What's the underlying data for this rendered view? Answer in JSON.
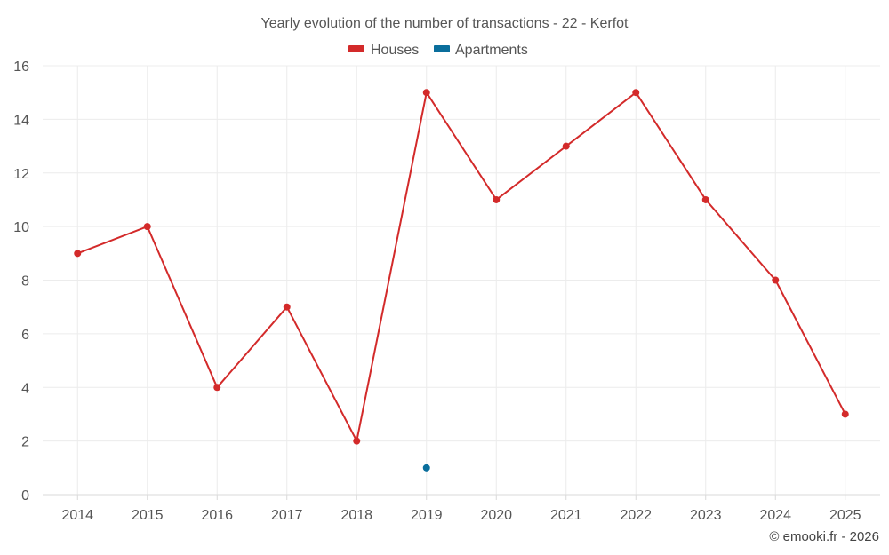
{
  "chart_data": {
    "type": "line",
    "title": "Yearly evolution of the number of transactions - 22 - Kerfot",
    "categories": [
      "2014",
      "2015",
      "2016",
      "2017",
      "2018",
      "2019",
      "2020",
      "2021",
      "2022",
      "2023",
      "2024",
      "2025"
    ],
    "series": [
      {
        "name": "Houses",
        "color": "#d32a2a",
        "values": [
          9,
          10,
          4,
          7,
          2,
          15,
          11,
          13,
          15,
          11,
          8,
          3
        ]
      },
      {
        "name": "Apartments",
        "color": "#0a6e9c",
        "values": [
          null,
          null,
          null,
          null,
          null,
          1,
          null,
          null,
          null,
          null,
          null,
          null
        ]
      }
    ],
    "ylim": [
      0,
      16
    ],
    "yticks": [
      0,
      2,
      4,
      6,
      8,
      10,
      12,
      14,
      16
    ],
    "xlabel": "",
    "ylabel": "",
    "grid": true,
    "legend_position": "top-center"
  },
  "credit": "© emooki.fr - 2026"
}
